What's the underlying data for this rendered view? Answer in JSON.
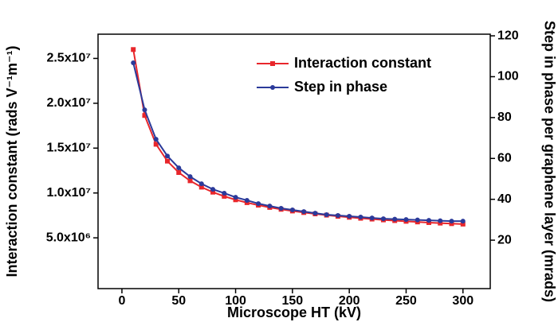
{
  "chart_data": {
    "type": "line",
    "x_label": "Microscope HT (kV)",
    "y_label": "Interaction constant (rads V⁻¹m⁻¹)",
    "y2_label": "Step in phase per graphene layer (mrads)",
    "x": [
      10,
      20,
      30,
      40,
      50,
      60,
      70,
      80,
      90,
      100,
      110,
      120,
      130,
      140,
      150,
      160,
      170,
      180,
      190,
      200,
      210,
      220,
      230,
      240,
      250,
      260,
      270,
      280,
      290,
      300
    ],
    "series": [
      {
        "name": "Interaction constant",
        "color": "#e8262b",
        "marker": "square",
        "values": [
          25990000,
          18640000,
          15430000,
          13550000,
          12280000,
          11360000,
          10650000,
          10090000,
          9630000,
          9240000,
          8920000,
          8640000,
          8390000,
          8180000,
          7990000,
          7820000,
          7670000,
          7530000,
          7400000,
          7290000,
          7180000,
          7090000,
          7000000,
          6920000,
          6840000,
          6770000,
          6700000,
          6640000,
          6580000,
          6530000
        ]
      },
      {
        "name": "Step in phase",
        "color": "#2b3a9a",
        "marker": "circle",
        "axis": "y2",
        "values": [
          106.8,
          83.8,
          69.4,
          61.2,
          55.4,
          51.1,
          47.6,
          44.9,
          43.0,
          41.0,
          39.5,
          37.9,
          36.7,
          35.6,
          34.8,
          34.0,
          33.2,
          32.5,
          32.1,
          31.7,
          31.3,
          30.9,
          30.5,
          30.3,
          30.1,
          29.9,
          29.7,
          29.5,
          29.3,
          29.3
        ]
      }
    ],
    "xlim": [
      -21,
      324
    ],
    "xticks": [
      0,
      50,
      100,
      150,
      200,
      250,
      300
    ],
    "ylim": [
      -660000,
      27700000
    ],
    "yticks": [
      {
        "value": 5000000,
        "label": "5.0x10⁶"
      },
      {
        "value": 10000000,
        "label": "1.0x10⁷"
      },
      {
        "value": 15000000,
        "label": "1.5x10⁷"
      },
      {
        "value": 20000000,
        "label": "2.0x10⁷"
      },
      {
        "value": 25000000,
        "label": "2.5x10⁷"
      }
    ],
    "y2lim": [
      -3.7,
      120.8
    ],
    "y2ticks": [
      20,
      40,
      60,
      80,
      100,
      120
    ],
    "legend": "upper right",
    "grid": false
  }
}
